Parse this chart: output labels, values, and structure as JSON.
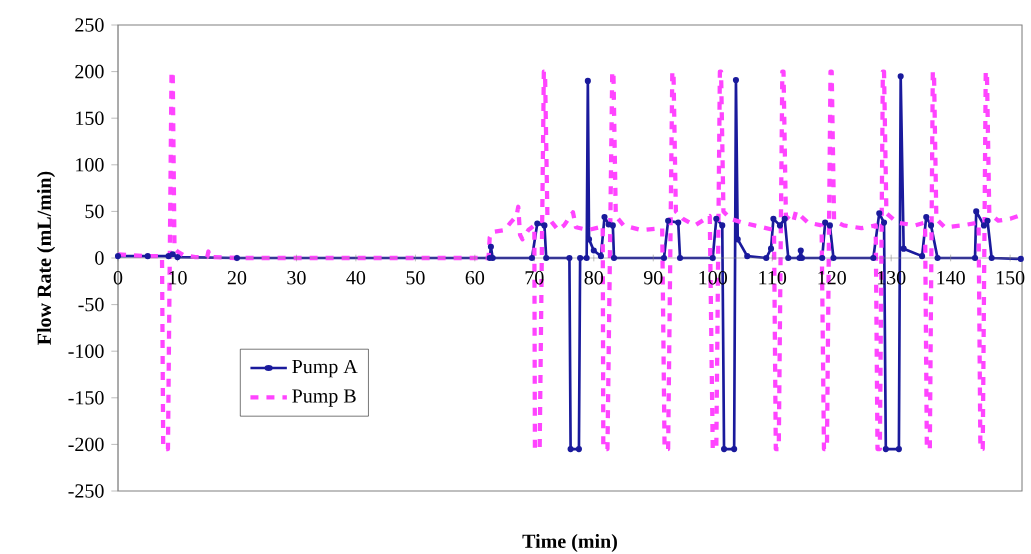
{
  "chart_data": {
    "type": "line",
    "xlabel": "Time (min)",
    "ylabel": "Flow Rate (mL/min)",
    "xlim": [
      0,
      152
    ],
    "ylim": [
      -250,
      250
    ],
    "xticks": [
      0,
      10,
      20,
      30,
      40,
      50,
      60,
      70,
      80,
      90,
      100,
      110,
      120,
      130,
      140,
      150
    ],
    "yticks": [
      -250,
      -200,
      -150,
      -100,
      -50,
      0,
      50,
      100,
      150,
      200,
      250
    ],
    "legend": "bottom left",
    "series": [
      {
        "name": "Pump A",
        "color": "#1a1a9c",
        "line_style": "solid",
        "marker": "circle",
        "x": [
          0,
          5,
          8.5,
          9.2,
          10,
          20,
          62.5,
          62.7,
          63,
          69.6,
          70.5,
          71.7,
          72,
          75.9,
          76.1,
          77.5,
          77.7,
          78.8,
          79,
          79.2,
          80,
          81.2,
          81.8,
          82.5,
          83.2,
          83.4,
          91.8,
          92.5,
          94.2,
          94.5,
          100,
          100.6,
          101.6,
          101.9,
          103.6,
          103.9,
          104.2,
          105.8,
          109,
          109.8,
          110.2,
          111.3,
          112.1,
          112.7,
          114.6,
          114.8,
          115,
          118.4,
          118.9,
          119.7,
          120.3,
          127,
          128,
          128.8,
          129.1,
          131.3,
          131.6,
          132.1,
          135.2,
          135.9,
          136.7,
          137.8,
          144.1,
          144.3,
          145.6,
          146.2,
          146.9,
          151.8
        ],
        "values": [
          2,
          2,
          2,
          4,
          1,
          0,
          0,
          12,
          0,
          0,
          37,
          35,
          0,
          0,
          -205,
          -205,
          0,
          0,
          190,
          20,
          8,
          2,
          44,
          36,
          35,
          0,
          0,
          40,
          38,
          0,
          0,
          42,
          35,
          -205,
          -205,
          191,
          20,
          2,
          0,
          10,
          42,
          35,
          42,
          0,
          0,
          8,
          0,
          0,
          38,
          35,
          0,
          0,
          48,
          38,
          -205,
          -205,
          195,
          10,
          2,
          44,
          35,
          0,
          0,
          50,
          35,
          40,
          0,
          -1
        ]
      },
      {
        "name": "Pump B",
        "color": "#ff44ff",
        "line_style": "dashed",
        "marker": "none",
        "x": [
          0,
          2,
          5,
          7.4,
          7.6,
          8.4,
          9.0,
          9.2,
          9.5,
          10,
          11,
          13,
          15,
          15.2,
          15.4,
          20,
          62.3,
          62.5,
          63,
          65,
          66,
          67,
          67.3,
          67.6,
          68,
          69,
          70,
          70.1,
          70.9,
          71.6,
          71.8,
          72.2,
          73,
          74,
          75,
          76.5,
          77,
          79,
          81,
          81.5,
          81.6,
          82.3,
          83.1,
          83.3,
          83.7,
          85,
          88,
          91.5,
          91.9,
          92.5,
          93.2,
          93.4,
          93.8,
          95,
          97,
          99.5,
          100.0,
          100.6,
          101.2,
          101.4,
          101.8,
          103,
          105,
          107,
          110.3,
          110.6,
          111.1,
          111.7,
          111.9,
          112.3,
          113.5,
          114,
          116,
          118.3,
          118.7,
          119.2,
          119.8,
          120,
          120.4,
          122,
          125,
          127.4,
          127.7,
          128.1,
          128.6,
          128.8,
          129.2,
          131,
          134,
          135.7,
          136,
          136.5,
          137,
          137.2,
          137.6,
          139,
          142,
          144.7,
          145,
          145.4,
          145.9,
          146.1,
          146.5,
          148,
          150,
          151.8
        ],
        "values": [
          4,
          3,
          2,
          2,
          -205,
          -205,
          200,
          200,
          10,
          7,
          3,
          1,
          1,
          7,
          1,
          0,
          0,
          22,
          28,
          30,
          38,
          45,
          55,
          25,
          20,
          30,
          35,
          -205,
          -205,
          200,
          200,
          45,
          38,
          30,
          35,
          49,
          33,
          30,
          33,
          35,
          -205,
          -205,
          200,
          200,
          45,
          35,
          30,
          32,
          -205,
          -205,
          200,
          200,
          50,
          42,
          35,
          45,
          -205,
          -205,
          200,
          200,
          50,
          42,
          38,
          35,
          30,
          -205,
          -205,
          200,
          200,
          45,
          38,
          50,
          38,
          35,
          -205,
          -205,
          200,
          200,
          40,
          35,
          32,
          35,
          -205,
          -205,
          200,
          200,
          48,
          38,
          35,
          38,
          -205,
          -205,
          200,
          200,
          42,
          33,
          35,
          38,
          -205,
          -205,
          200,
          200,
          48,
          40,
          42,
          46
        ]
      }
    ]
  }
}
